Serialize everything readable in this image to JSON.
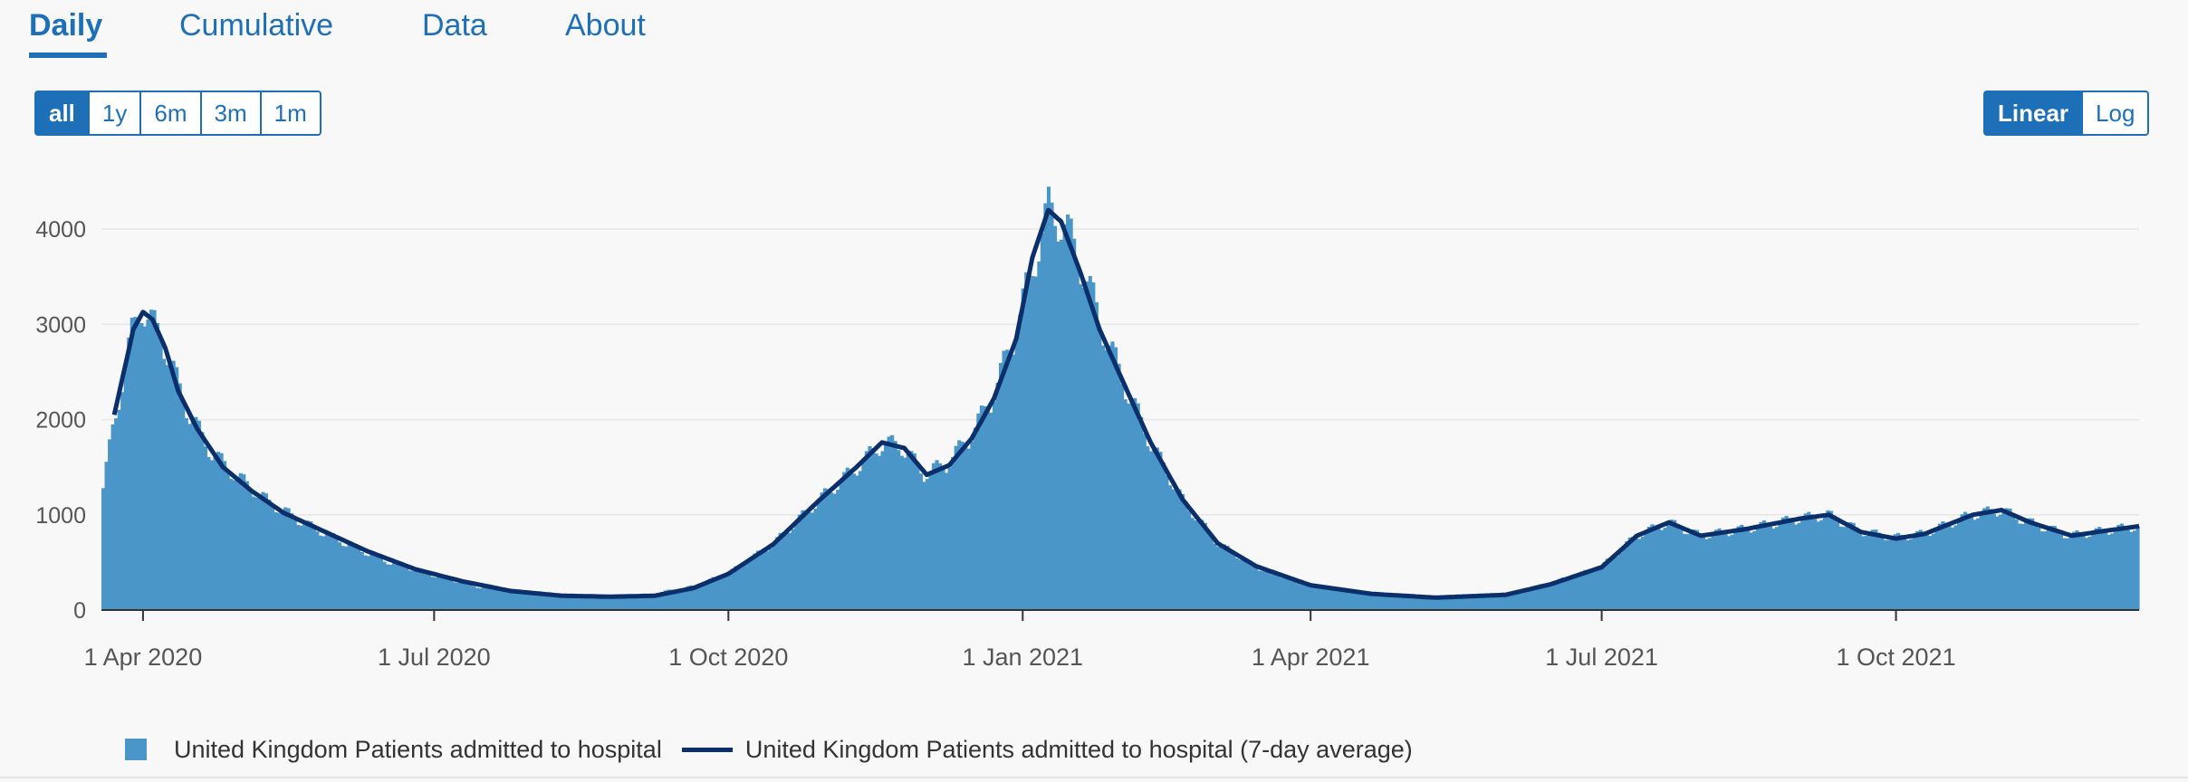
{
  "tabs": [
    {
      "label": "Daily"
    },
    {
      "label": "Cumulative"
    },
    {
      "label": "Data"
    },
    {
      "label": "About"
    }
  ],
  "range_buttons": [
    "all",
    "1y",
    "6m",
    "3m",
    "1m"
  ],
  "scale_buttons": [
    "Linear",
    "Log"
  ],
  "colors": {
    "accent": "#1d70b8",
    "bars": "#4a96c8",
    "average": "#0b2f6b"
  },
  "chart_data": {
    "type": "bar",
    "x_start": "2020-03-19",
    "x_end": "2021-12-16",
    "xticks": [
      {
        "date": "2020-04-01",
        "label": "1 Apr 2020"
      },
      {
        "date": "2020-07-01",
        "label": "1 Jul 2020"
      },
      {
        "date": "2020-10-01",
        "label": "1 Oct 2020"
      },
      {
        "date": "2021-01-01",
        "label": "1 Jan 2021"
      },
      {
        "date": "2021-04-01",
        "label": "1 Apr 2021"
      },
      {
        "date": "2021-07-01",
        "label": "1 Jul 2021"
      },
      {
        "date": "2021-10-01",
        "label": "1 Oct 2021"
      }
    ],
    "yticks": [
      0,
      1000,
      2000,
      3000,
      4000
    ],
    "ylim": [
      0,
      4600
    ],
    "grid": true,
    "legend_position": "bottom",
    "series": [
      {
        "name": "United Kingdom Patients admitted to hospital",
        "kind": "bar",
        "keypoints": [
          [
            "2020-03-19",
            1280
          ],
          [
            "2020-03-22",
            1900
          ],
          [
            "2020-03-25",
            2400
          ],
          [
            "2020-03-28",
            2900
          ],
          [
            "2020-03-31",
            3200
          ],
          [
            "2020-04-02",
            3050
          ],
          [
            "2020-04-06",
            2900
          ],
          [
            "2020-04-10",
            2500
          ],
          [
            "2020-04-15",
            2050
          ],
          [
            "2020-04-22",
            1650
          ],
          [
            "2020-04-30",
            1400
          ],
          [
            "2020-05-10",
            1130
          ],
          [
            "2020-05-20",
            930
          ],
          [
            "2020-06-01",
            730
          ],
          [
            "2020-06-15",
            520
          ],
          [
            "2020-07-01",
            360
          ],
          [
            "2020-07-15",
            240
          ],
          [
            "2020-08-01",
            175
          ],
          [
            "2020-08-20",
            150
          ],
          [
            "2020-09-05",
            160
          ],
          [
            "2020-09-20",
            250
          ],
          [
            "2020-10-01",
            390
          ],
          [
            "2020-10-15",
            700
          ],
          [
            "2020-10-29",
            1150
          ],
          [
            "2020-11-10",
            1500
          ],
          [
            "2020-11-18",
            1750
          ],
          [
            "2020-11-24",
            1720
          ],
          [
            "2020-12-01",
            1430
          ],
          [
            "2020-12-08",
            1530
          ],
          [
            "2020-12-15",
            1800
          ],
          [
            "2020-12-22",
            2200
          ],
          [
            "2020-12-29",
            2850
          ],
          [
            "2021-01-04",
            3600
          ],
          [
            "2021-01-09",
            4200
          ],
          [
            "2021-01-14",
            4050
          ],
          [
            "2021-01-20",
            3550
          ],
          [
            "2021-01-26",
            2950
          ],
          [
            "2021-02-02",
            2350
          ],
          [
            "2021-02-10",
            1750
          ],
          [
            "2021-02-20",
            1150
          ],
          [
            "2021-03-03",
            700
          ],
          [
            "2021-03-15",
            450
          ],
          [
            "2021-04-01",
            260
          ],
          [
            "2021-04-20",
            170
          ],
          [
            "2021-05-10",
            130
          ],
          [
            "2021-06-01",
            170
          ],
          [
            "2021-06-15",
            280
          ],
          [
            "2021-07-01",
            450
          ],
          [
            "2021-07-12",
            780
          ],
          [
            "2021-07-22",
            920
          ],
          [
            "2021-08-01",
            780
          ],
          [
            "2021-08-15",
            850
          ],
          [
            "2021-09-01",
            960
          ],
          [
            "2021-09-10",
            1000
          ],
          [
            "2021-09-20",
            830
          ],
          [
            "2021-10-01",
            760
          ],
          [
            "2021-10-10",
            800
          ],
          [
            "2021-10-25",
            1000
          ],
          [
            "2021-11-03",
            1050
          ],
          [
            "2021-11-12",
            920
          ],
          [
            "2021-11-25",
            780
          ],
          [
            "2021-12-05",
            830
          ],
          [
            "2021-12-16",
            880
          ]
        ]
      },
      {
        "name": "United Kingdom Patients admitted to hospital (7-day average)",
        "kind": "line",
        "keypoints": [
          [
            "2020-03-23",
            2050
          ],
          [
            "2020-03-26",
            2500
          ],
          [
            "2020-03-29",
            2950
          ],
          [
            "2020-04-01",
            3130
          ],
          [
            "2020-04-04",
            3050
          ],
          [
            "2020-04-08",
            2750
          ],
          [
            "2020-04-12",
            2300
          ],
          [
            "2020-04-18",
            1900
          ],
          [
            "2020-04-26",
            1500
          ],
          [
            "2020-05-05",
            1250
          ],
          [
            "2020-05-15",
            1020
          ],
          [
            "2020-05-28",
            820
          ],
          [
            "2020-06-10",
            620
          ],
          [
            "2020-06-25",
            430
          ],
          [
            "2020-07-10",
            300
          ],
          [
            "2020-07-25",
            200
          ],
          [
            "2020-08-10",
            150
          ],
          [
            "2020-08-25",
            140
          ],
          [
            "2020-09-08",
            150
          ],
          [
            "2020-09-20",
            230
          ],
          [
            "2020-10-01",
            380
          ],
          [
            "2020-10-15",
            690
          ],
          [
            "2020-10-29",
            1140
          ],
          [
            "2020-11-10",
            1500
          ],
          [
            "2020-11-18",
            1760
          ],
          [
            "2020-11-25",
            1700
          ],
          [
            "2020-12-02",
            1420
          ],
          [
            "2020-12-09",
            1520
          ],
          [
            "2020-12-16",
            1800
          ],
          [
            "2020-12-23",
            2220
          ],
          [
            "2020-12-30",
            2850
          ],
          [
            "2021-01-04",
            3700
          ],
          [
            "2021-01-09",
            4200
          ],
          [
            "2021-01-13",
            4080
          ],
          [
            "2021-01-19",
            3550
          ],
          [
            "2021-01-25",
            2950
          ],
          [
            "2021-02-02",
            2350
          ],
          [
            "2021-02-10",
            1760
          ],
          [
            "2021-02-20",
            1160
          ],
          [
            "2021-03-03",
            700
          ],
          [
            "2021-03-15",
            460
          ],
          [
            "2021-04-01",
            260
          ],
          [
            "2021-04-20",
            170
          ],
          [
            "2021-05-10",
            130
          ],
          [
            "2021-06-01",
            160
          ],
          [
            "2021-06-15",
            270
          ],
          [
            "2021-07-01",
            450
          ],
          [
            "2021-07-12",
            780
          ],
          [
            "2021-07-22",
            920
          ],
          [
            "2021-08-01",
            780
          ],
          [
            "2021-08-15",
            850
          ],
          [
            "2021-09-01",
            960
          ],
          [
            "2021-09-10",
            1000
          ],
          [
            "2021-09-20",
            820
          ],
          [
            "2021-10-01",
            750
          ],
          [
            "2021-10-10",
            800
          ],
          [
            "2021-10-25",
            1000
          ],
          [
            "2021-11-03",
            1050
          ],
          [
            "2021-11-12",
            920
          ],
          [
            "2021-11-25",
            780
          ],
          [
            "2021-12-05",
            830
          ],
          [
            "2021-12-16",
            880
          ]
        ]
      }
    ]
  }
}
